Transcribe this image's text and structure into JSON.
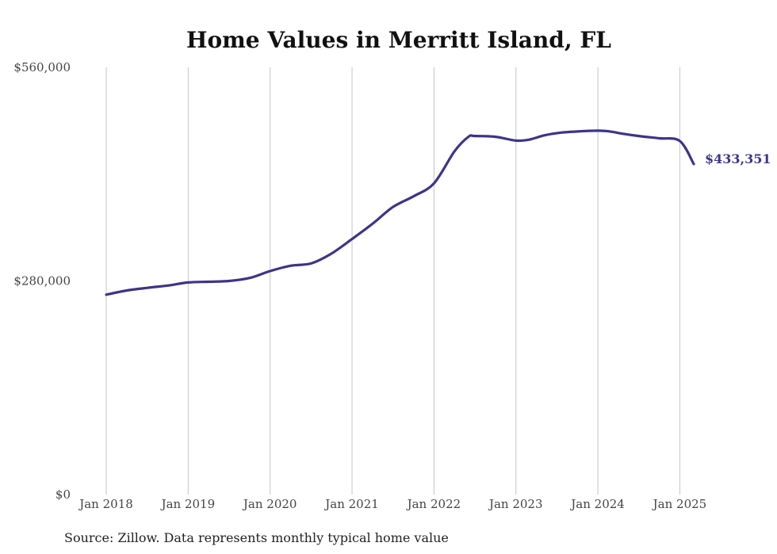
{
  "chart_data": {
    "type": "line",
    "title": "Home Values in Merritt Island, FL",
    "xlabel": "",
    "ylabel": "",
    "ylim": [
      0,
      560000
    ],
    "y_ticks": [
      {
        "value": 0,
        "label": "$0"
      },
      {
        "value": 280000,
        "label": "$280,000"
      },
      {
        "value": 560000,
        "label": "$560,000"
      }
    ],
    "x_ticks": [
      {
        "value": 2018.0,
        "label": "Jan 2018"
      },
      {
        "value": 2019.0,
        "label": "Jan 2019"
      },
      {
        "value": 2020.0,
        "label": "Jan 2020"
      },
      {
        "value": 2021.0,
        "label": "Jan 2021"
      },
      {
        "value": 2022.0,
        "label": "Jan 2022"
      },
      {
        "value": 2023.0,
        "label": "Jan 2023"
      },
      {
        "value": 2024.0,
        "label": "Jan 2024"
      },
      {
        "value": 2025.0,
        "label": "Jan 2025"
      }
    ],
    "xlim": [
      2018.0,
      2025.17
    ],
    "grid": "vertical",
    "line_color": "#3d348b",
    "series": [
      {
        "end_label": "$433,351",
        "x": [
          2018.0,
          2018.25,
          2018.5,
          2018.75,
          2019.0,
          2019.25,
          2019.5,
          2019.75,
          2020.0,
          2020.25,
          2020.5,
          2020.75,
          2021.0,
          2021.25,
          2021.5,
          2021.75,
          2022.0,
          2022.25,
          2022.42,
          2022.5,
          2022.75,
          2023.0,
          2023.17,
          2023.35,
          2023.55,
          2023.75,
          2024.0,
          2024.15,
          2024.3,
          2024.5,
          2024.75,
          2025.0,
          2025.17
        ],
        "values": [
          262000,
          267500,
          271000,
          274000,
          278000,
          279000,
          280000,
          284000,
          293000,
          300000,
          303000,
          316000,
          335000,
          355000,
          377000,
          391000,
          408000,
          450000,
          469000,
          470000,
          469000,
          464000,
          465500,
          471000,
          474500,
          476000,
          477000,
          476000,
          473000,
          470000,
          467000,
          463500,
          433351
        ]
      }
    ]
  },
  "source_note": "Source: Zillow. Data represents monthly typical home value"
}
